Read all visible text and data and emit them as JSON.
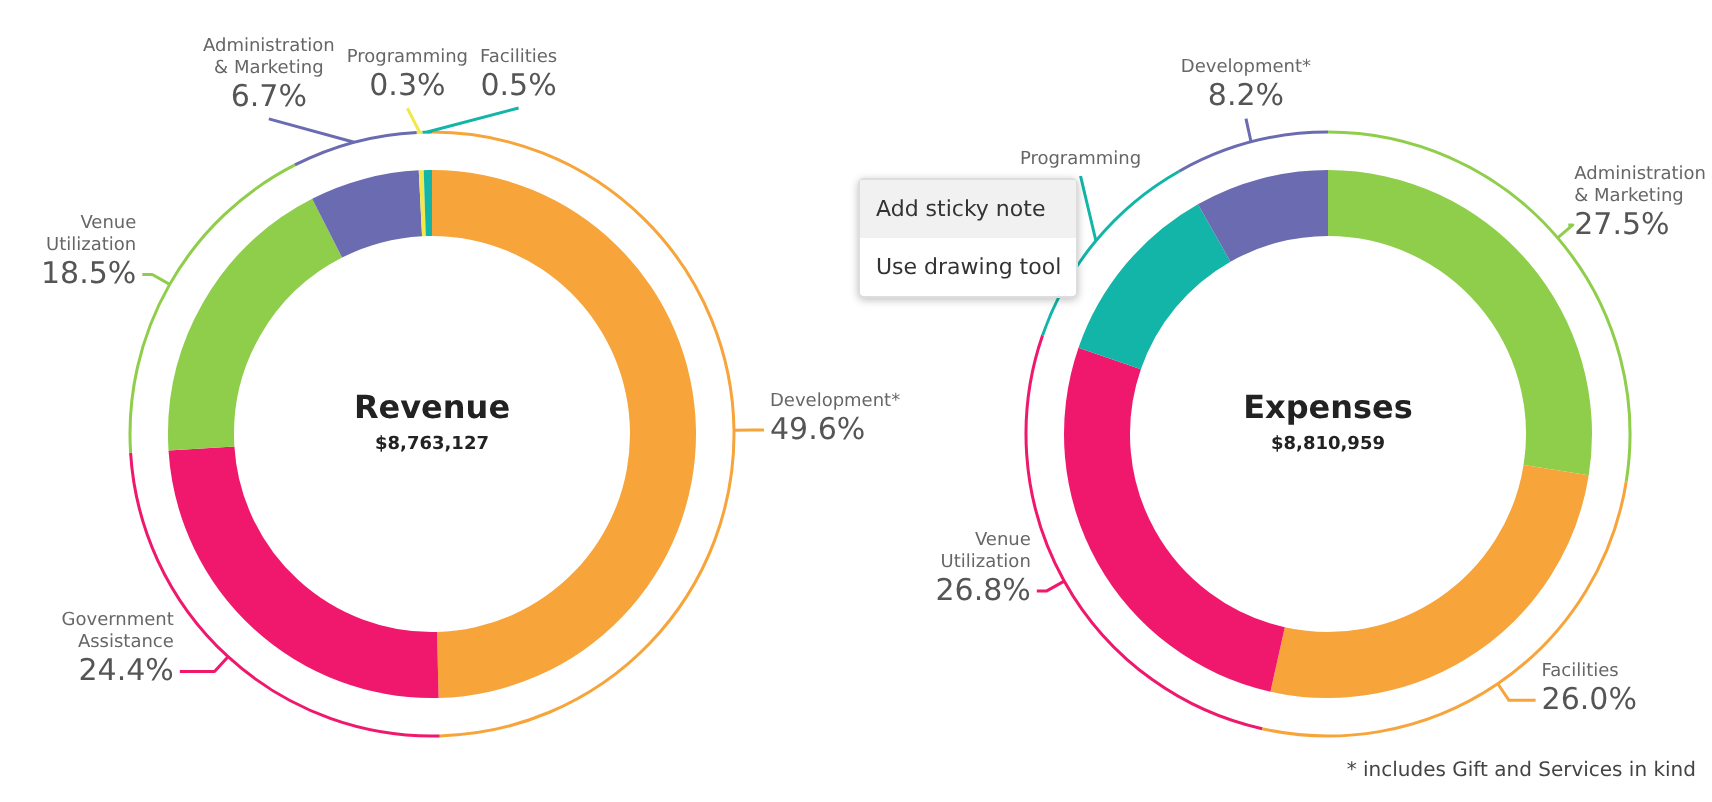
{
  "chart_data": [
    {
      "type": "donut",
      "title": "Revenue",
      "subtitle": "$8,763,127",
      "categories": [
        "Development*",
        "Government Assistance",
        "Venue Utilization",
        "Administration & Marketing",
        "Programming",
        "Facilities"
      ],
      "values": [
        49.6,
        24.4,
        18.5,
        6.7,
        0.3,
        0.5
      ],
      "colors": [
        "#f7a43a",
        "#f0186c",
        "#8fce4a",
        "#6a6bb0",
        "#f2e84a",
        "#12b5a8"
      ],
      "value_labels": [
        "49.6%",
        "24.4%",
        "18.5%",
        "6.7%",
        "0.3%",
        "0.5%"
      ]
    },
    {
      "type": "donut",
      "title": "Expenses",
      "subtitle": "$8,810,959",
      "categories": [
        "Administration & Marketing",
        "Facilities",
        "Venue Utilization",
        "Programming",
        "Development*"
      ],
      "values": [
        27.5,
        26.0,
        26.8,
        11.5,
        8.2
      ],
      "colors": [
        "#8fce4a",
        "#f7a43a",
        "#f0186c",
        "#12b5a8",
        "#6a6bb0"
      ],
      "value_labels": [
        "27.5%",
        "26.0%",
        "26.8%",
        null,
        "8.2%"
      ],
      "annotations": [
        "* includes Gift and Services in kind",
        "Add sticky note",
        "Use drawing tool"
      ]
    }
  ]
}
